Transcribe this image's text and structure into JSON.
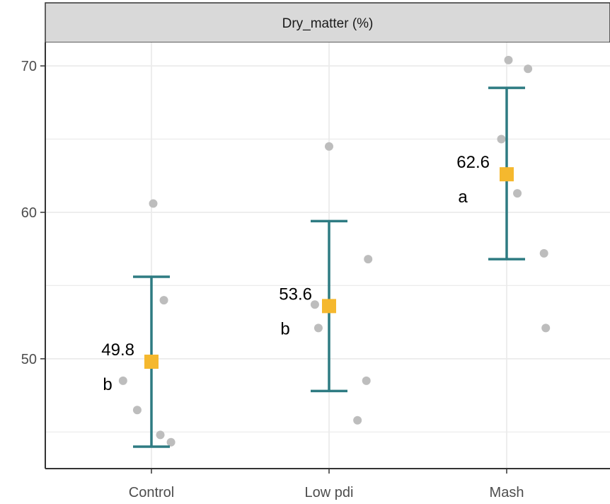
{
  "chart_data": {
    "type": "scatter",
    "title": "",
    "facet_label": "Dry_matter (%)",
    "xlabel": "",
    "ylabel": "",
    "categories": [
      "Control",
      "Low pdi",
      "Mash"
    ],
    "ylim": [
      42.5,
      71.6
    ],
    "yticks": [
      50,
      60,
      70
    ],
    "grid": true,
    "legend": "none",
    "colors": {
      "errorbar": "#2e7b82",
      "mean": "#f5b82e",
      "points": "#bdbdbd",
      "grid": "#ebebeb",
      "strip": "#d9d9d9"
    },
    "groups": [
      {
        "category": "Control",
        "mean": 49.8,
        "mean_label": "49.8",
        "letter": "b",
        "lower": 44.0,
        "upper": 55.6,
        "points": [
          {
            "dx": -0.16,
            "y": 48.5
          },
          {
            "dx": -0.08,
            "y": 46.5
          },
          {
            "dx": 0.01,
            "y": 60.6
          },
          {
            "dx": 0.05,
            "y": 44.8
          },
          {
            "dx": 0.07,
            "y": 54.0
          },
          {
            "dx": 0.11,
            "y": 44.3
          }
        ]
      },
      {
        "category": "Low pdi",
        "mean": 53.6,
        "mean_label": "53.6",
        "letter": "b",
        "lower": 47.8,
        "upper": 59.4,
        "points": [
          {
            "dx": -0.08,
            "y": 53.7
          },
          {
            "dx": -0.06,
            "y": 52.1
          },
          {
            "dx": 0.0,
            "y": 64.5
          },
          {
            "dx": 0.16,
            "y": 45.8
          },
          {
            "dx": 0.21,
            "y": 48.5
          },
          {
            "dx": 0.22,
            "y": 56.8
          }
        ]
      },
      {
        "category": "Mash",
        "mean": 62.6,
        "mean_label": "62.6",
        "letter": "a",
        "lower": 56.8,
        "upper": 68.5,
        "points": [
          {
            "dx": -0.03,
            "y": 65.0
          },
          {
            "dx": 0.01,
            "y": 70.4
          },
          {
            "dx": 0.06,
            "y": 61.3
          },
          {
            "dx": 0.12,
            "y": 69.8
          },
          {
            "dx": 0.21,
            "y": 57.2
          },
          {
            "dx": 0.22,
            "y": 52.1
          }
        ]
      }
    ]
  }
}
